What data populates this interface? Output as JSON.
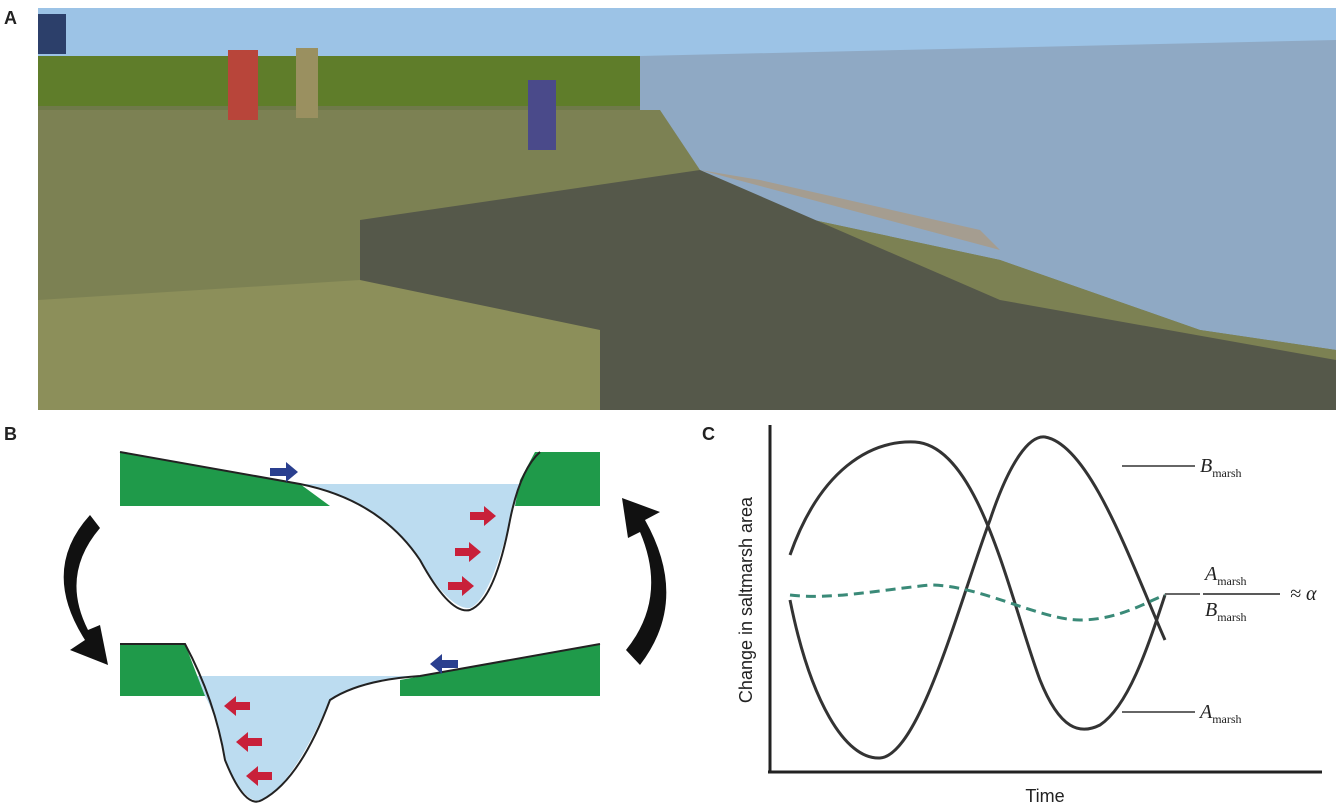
{
  "panels": {
    "a": {
      "label": "A"
    },
    "b": {
      "label": "B"
    },
    "c": {
      "label": "C",
      "y_axis_label": "Change in saltmarsh area",
      "x_axis_label": "Time",
      "upper_curve": {
        "symbol": "B",
        "subscript": "marsh"
      },
      "lower_curve": {
        "symbol": "A",
        "subscript": "marsh"
      },
      "ratio": {
        "numerator": {
          "symbol": "A",
          "subscript": "marsh"
        },
        "denominator": {
          "symbol": "B",
          "subscript": "marsh"
        },
        "relation": "≈ α"
      }
    }
  }
}
